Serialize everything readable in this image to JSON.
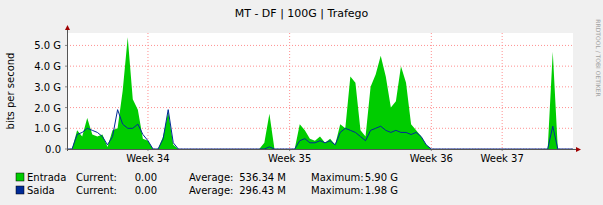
{
  "chart_data": {
    "type": "area",
    "title": "MT - DF | 100G | Trafego",
    "y_label": "bits per second",
    "watermark": "RRDTOOL / TOBI OETIKER",
    "grid": true,
    "legend": "bottom-left",
    "x": [
      0,
      0.25,
      0.5,
      0.75,
      1,
      1.25,
      1.5,
      1.75,
      2,
      2.25,
      2.5,
      2.75,
      3,
      3.25,
      3.5,
      3.75,
      4,
      4.25,
      4.5,
      4.75,
      5,
      5.25,
      5.5,
      5.75,
      6,
      6.25,
      6.5,
      6.75,
      7,
      7.25,
      7.5,
      7.75,
      8,
      8.25,
      8.5,
      8.75,
      9,
      9.25,
      9.5,
      9.75,
      10,
      10.25,
      10.5,
      10.75,
      11,
      11.25,
      11.5,
      11.75,
      12,
      12.25,
      12.5,
      12.75,
      13,
      13.25,
      13.5,
      13.75,
      14,
      14.25,
      14.5,
      14.75,
      15,
      15.25,
      15.5,
      15.75,
      16,
      16.25,
      16.5,
      16.75,
      17,
      17.25,
      17.5,
      17.75,
      18,
      18.25,
      18.5,
      18.75,
      19,
      19.25,
      19.5,
      19.75,
      20,
      20.25,
      20.5,
      20.75,
      21,
      21.25,
      21.5,
      21.75,
      22,
      22.25,
      22.5,
      22.75,
      23,
      23.25,
      23.5,
      23.75,
      24,
      24.25,
      24.5,
      24.75,
      25
    ],
    "xlim": [
      0,
      25
    ],
    "xticks": [
      {
        "value": 4,
        "label": "Week 34"
      },
      {
        "value": 11,
        "label": "Week 35"
      },
      {
        "value": 18,
        "label": "Week 36"
      },
      {
        "value": 21.5,
        "label": "Week 37"
      }
    ],
    "ylim": [
      0,
      5600000000.0
    ],
    "yticks": [
      {
        "value": 0,
        "label": "0.0"
      },
      {
        "value": 1000000000.0,
        "label": "1.0 G"
      },
      {
        "value": 2000000000.0,
        "label": "2.0 G"
      },
      {
        "value": 3000000000.0,
        "label": "3.0 G"
      },
      {
        "value": 4000000000.0,
        "label": "4.0 G"
      },
      {
        "value": 5000000000.0,
        "label": "5.0 G"
      }
    ],
    "series": [
      {
        "name": "Entrada",
        "color": "#00cc00",
        "type": "area",
        "values": [
          0,
          0,
          900000000.0,
          600000000.0,
          1500000000.0,
          700000000.0,
          600000000.0,
          700000000.0,
          100000000.0,
          900000000.0,
          1000000000.0,
          2800000000.0,
          5400000000.0,
          2400000000.0,
          1900000000.0,
          500000000.0,
          400000000.0,
          0,
          0,
          600000000.0,
          1800000000.0,
          200000000.0,
          0,
          0,
          0,
          0,
          0,
          0,
          0,
          0,
          0,
          0,
          0,
          0,
          0,
          0,
          0,
          0,
          0,
          300000000.0,
          1700000000.0,
          0,
          0,
          0,
          0,
          0,
          1200000000.0,
          900000000.0,
          500000000.0,
          400000000.0,
          600000000.0,
          300000000.0,
          500000000.0,
          200000000.0,
          1200000000.0,
          1000000000.0,
          3500000000.0,
          3200000000.0,
          900000000.0,
          600000000.0,
          3000000000.0,
          3600000000.0,
          4500000000.0,
          3500000000.0,
          2000000000.0,
          2300000000.0,
          4000000000.0,
          3200000000.0,
          1200000000.0,
          900000000.0,
          600000000.0,
          200000000.0,
          0,
          0,
          0,
          0,
          0,
          0,
          0,
          0,
          0,
          0,
          0,
          0,
          0,
          0,
          0,
          0,
          0,
          0,
          0,
          0,
          0,
          0,
          0,
          0,
          4700000000.0,
          0,
          0,
          0,
          0
        ],
        "stats": [
          {
            "label": "Current:",
            "value": "0.00"
          },
          {
            "label": "Average:",
            "value": "536.34 M"
          },
          {
            "label": "Maximum:",
            "value": "5.90 G"
          }
        ]
      },
      {
        "name": "Saida",
        "color": "#002a97",
        "type": "line",
        "values": [
          0,
          0,
          700000000.0,
          800000000.0,
          1000000000.0,
          900000000.0,
          800000000.0,
          600000000.0,
          200000000.0,
          600000000.0,
          1900000000.0,
          1200000000.0,
          1000000000.0,
          1000000000.0,
          1200000000.0,
          700000000.0,
          400000000.0,
          0,
          0,
          500000000.0,
          1900000000.0,
          300000000.0,
          0,
          0,
          0,
          0,
          0,
          0,
          0,
          0,
          0,
          0,
          0,
          0,
          0,
          0,
          0,
          0,
          0,
          0,
          100000000.0,
          0,
          0,
          0,
          0,
          0,
          400000000.0,
          500000000.0,
          300000000.0,
          300000000.0,
          400000000.0,
          300000000.0,
          400000000.0,
          200000000.0,
          800000000.0,
          1000000000.0,
          900000000.0,
          800000000.0,
          600000000.0,
          400000000.0,
          900000000.0,
          1000000000.0,
          1100000000.0,
          900000000.0,
          800000000.0,
          900000000.0,
          800000000.0,
          800000000.0,
          700000000.0,
          800000000.0,
          600000000.0,
          200000000.0,
          0,
          0,
          0,
          0,
          0,
          0,
          0,
          0,
          0,
          0,
          0,
          0,
          0,
          0,
          0,
          0,
          0,
          0,
          0,
          0,
          0,
          0,
          0,
          0,
          1100000000.0,
          0,
          0,
          0,
          0
        ],
        "stats": [
          {
            "label": "Current:",
            "value": "0.00"
          },
          {
            "label": "Average:",
            "value": "296.43 M"
          },
          {
            "label": "Maximum:",
            "value": "1.98 G"
          }
        ]
      }
    ]
  }
}
